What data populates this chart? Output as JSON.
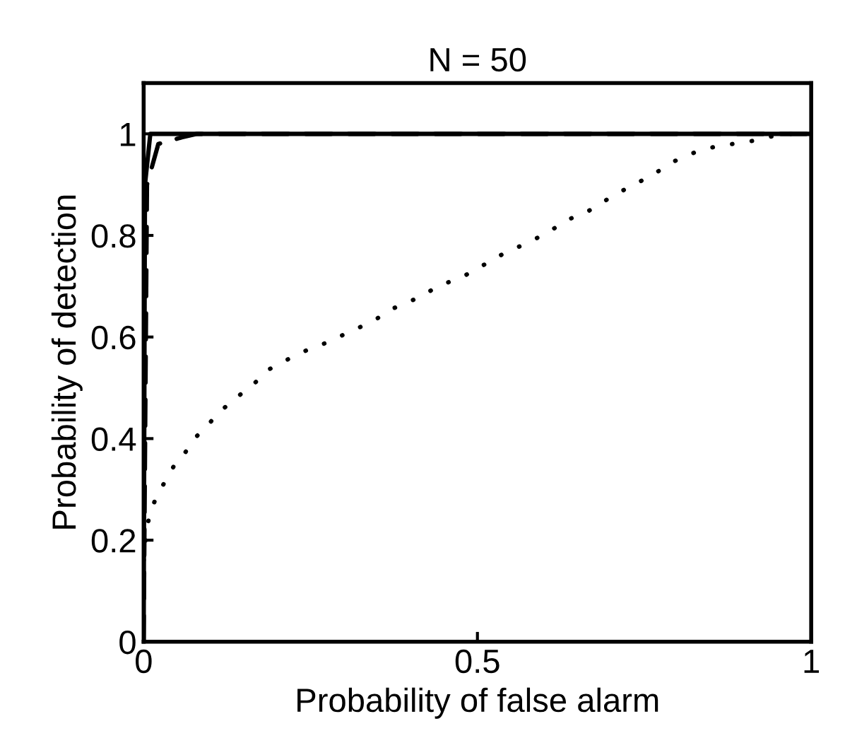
{
  "chart_data": {
    "type": "line",
    "title": "N = 50",
    "xlabel": "Probability of false alarm",
    "ylabel": "Probability of detection",
    "xlim": [
      0,
      1
    ],
    "ylim": [
      0,
      1.1
    ],
    "xticks": [
      0,
      0.5,
      1
    ],
    "yticks": [
      0,
      0.2,
      0.4,
      0.6,
      0.8,
      1
    ],
    "grid": false,
    "marker": "none",
    "series": [
      {
        "color": "#000000",
        "line_style": "solid",
        "x": [
          0,
          0.002,
          0.01,
          1
        ],
        "values": [
          0,
          0.9,
          1,
          1
        ]
      },
      {
        "color": "#000000",
        "line_style": "dashed",
        "x": [
          0,
          0.005,
          0.022,
          0.057,
          0.08,
          1
        ],
        "values": [
          0,
          0.9,
          0.98,
          0.993,
          1,
          1
        ]
      },
      {
        "color": "#000000",
        "line_style": "dotted",
        "x": [
          0,
          0.004,
          0.011,
          0.021,
          0.034,
          0.047,
          0.061,
          0.076,
          0.095,
          0.112,
          0.129,
          0.148,
          0.167,
          0.186,
          0.207,
          0.23,
          0.254,
          0.277,
          0.3,
          0.325,
          0.347,
          0.37,
          0.394,
          0.417,
          0.44,
          0.474,
          0.498,
          0.52,
          0.543,
          0.566,
          0.588,
          0.611,
          0.632,
          0.655,
          0.677,
          0.698,
          0.72,
          0.742,
          0.764,
          0.786,
          0.809,
          0.833,
          0.857,
          0.882,
          0.908,
          0.934,
          0.96,
          1
        ],
        "values": [
          0.16,
          0.22,
          0.26,
          0.29,
          0.32,
          0.35,
          0.37,
          0.4,
          0.425,
          0.45,
          0.47,
          0.49,
          0.51,
          0.535,
          0.55,
          0.565,
          0.58,
          0.59,
          0.605,
          0.62,
          0.634,
          0.654,
          0.668,
          0.68,
          0.7,
          0.716,
          0.733,
          0.75,
          0.767,
          0.78,
          0.794,
          0.81,
          0.83,
          0.84,
          0.856,
          0.874,
          0.89,
          0.905,
          0.92,
          0.94,
          0.955,
          0.967,
          0.975,
          0.98,
          0.985,
          0.993,
          1,
          1
        ]
      }
    ]
  }
}
